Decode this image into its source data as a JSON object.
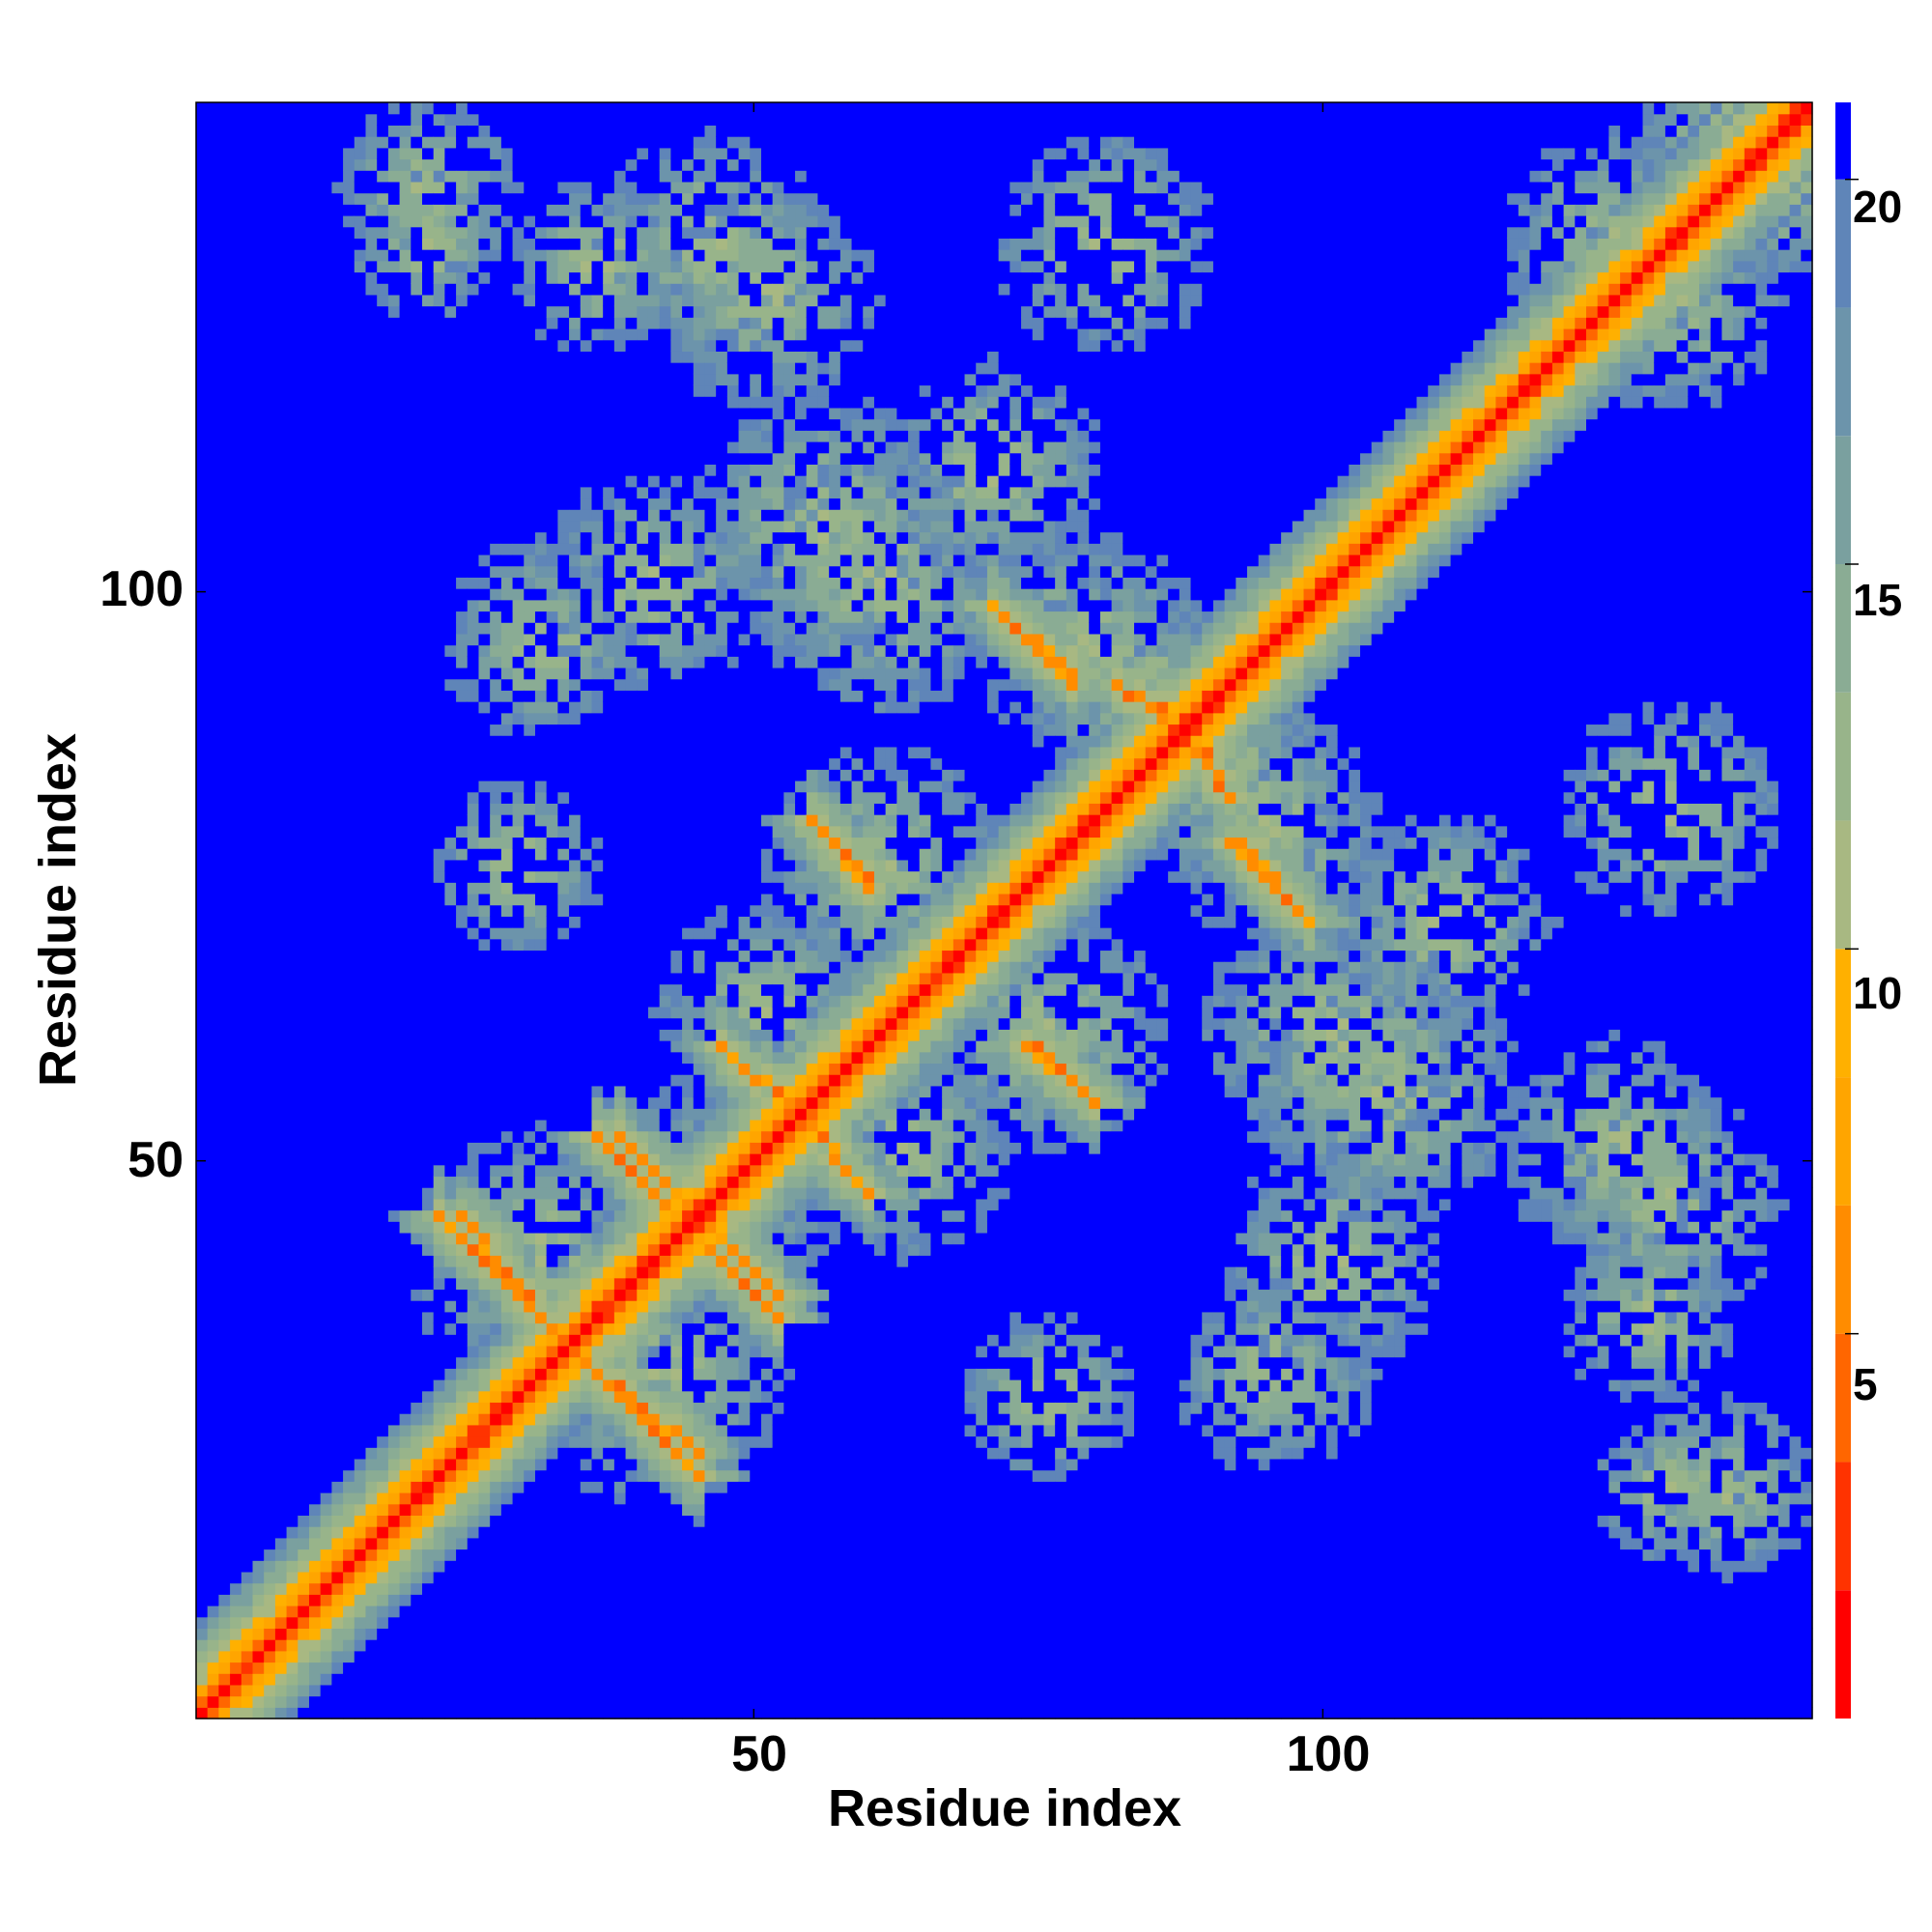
{
  "chart_data": {
    "type": "heatmap",
    "title": "",
    "xlabel": "Residue index",
    "ylabel": "Residue index",
    "x_range": [
      1,
      143
    ],
    "y_range": [
      1,
      143
    ],
    "x_ticks": [
      50,
      100
    ],
    "y_ticks": [
      50,
      100
    ],
    "colorbar": {
      "range": [
        0,
        21
      ],
      "ticks": [
        5,
        10,
        15,
        20
      ],
      "colors": [
        "#ff0000",
        "#ff3300",
        "#ff6600",
        "#ff8c00",
        "#ffa500",
        "#ffb000",
        "#a8b882",
        "#98b48a",
        "#8aac94",
        "#7aa09f",
        "#6c94ab",
        "#5f85b8",
        "#0000ff"
      ]
    },
    "description_of_values": "Pairwise residue distance contact map; diagonal values near 0, beta-strand pairings shown as anti-diagonal orange/red bands, background beyond cutoff shown as blue",
    "features": {
      "diagonal": {
        "start": 1,
        "end": 143
      },
      "strand_pairings": [
        {
          "i": [
            22,
            34
          ],
          "j": [
            45,
            33
          ]
        },
        {
          "i": [
            35,
            45
          ],
          "j": [
            32,
            24
          ]
        },
        {
          "i": [
            36,
            43
          ],
          "j": [
            52,
            45
          ]
        },
        {
          "i": [
            46,
            52
          ],
          "j": [
            44,
            38
          ]
        },
        {
          "i": [
            47,
            55
          ],
          "j": [
            60,
            53
          ]
        },
        {
          "i": [
            55,
            60
          ],
          "j": [
            80,
            75
          ]
        },
        {
          "i": [
            71,
            78
          ],
          "j": [
            99,
            93
          ]
        },
        {
          "i": [
            74,
            80
          ],
          "j": [
            60,
            55
          ]
        },
        {
          "i": [
            82,
            90
          ],
          "j": [
            92,
            86
          ]
        },
        {
          "i": [
            92,
            97
          ],
          "j": [
            78,
            73
          ]
        }
      ]
    },
    "grid": false,
    "legend": "colorbar-right"
  },
  "axes": {
    "xlabel": "Residue index",
    "ylabel": "Residue index",
    "x_tick_labels": [
      "50",
      "100"
    ],
    "y_tick_labels": [
      "50",
      "100"
    ],
    "cb_tick_labels": [
      "5",
      "10",
      "15",
      "20"
    ]
  }
}
